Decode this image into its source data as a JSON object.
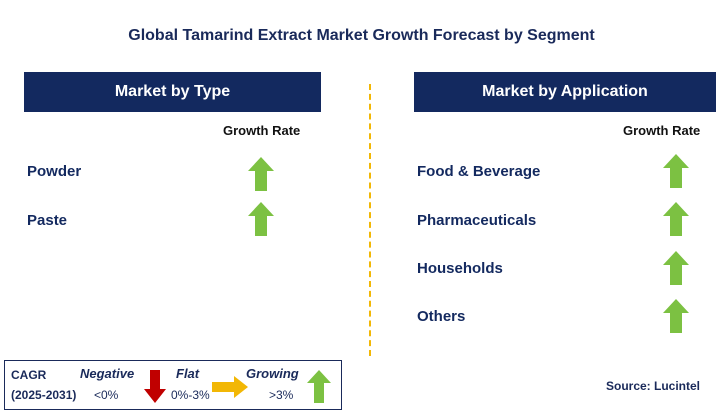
{
  "title": "Global Tamarind Extract Market Growth Forecast by Segment",
  "left_panel": {
    "header": "Market by Type",
    "growth_rate_label": "Growth Rate",
    "items": [
      {
        "label": "Powder",
        "trend": "growing"
      },
      {
        "label": "Paste",
        "trend": "growing"
      }
    ]
  },
  "right_panel": {
    "header": "Market by Application",
    "growth_rate_label": "Growth Rate",
    "items": [
      {
        "label": "Food & Beverage",
        "trend": "growing"
      },
      {
        "label": "Pharmaceuticals",
        "trend": "growing"
      },
      {
        "label": "Households",
        "trend": "growing"
      },
      {
        "label": "Others",
        "trend": "growing"
      }
    ]
  },
  "legend": {
    "cagr_label": "CAGR",
    "period": "(2025-2031)",
    "negative_label": "Negative",
    "negative_value": "<0%",
    "flat_label": "Flat",
    "flat_value": "0%-3%",
    "growing_label": "Growing",
    "growing_value": ">3%"
  },
  "source": "Source: Lucintel",
  "colors": {
    "header_bg": "#13295f",
    "growing": "#7cc142",
    "negative": "#c00000",
    "flat": "#f2b705",
    "divider": "#f2b705"
  }
}
